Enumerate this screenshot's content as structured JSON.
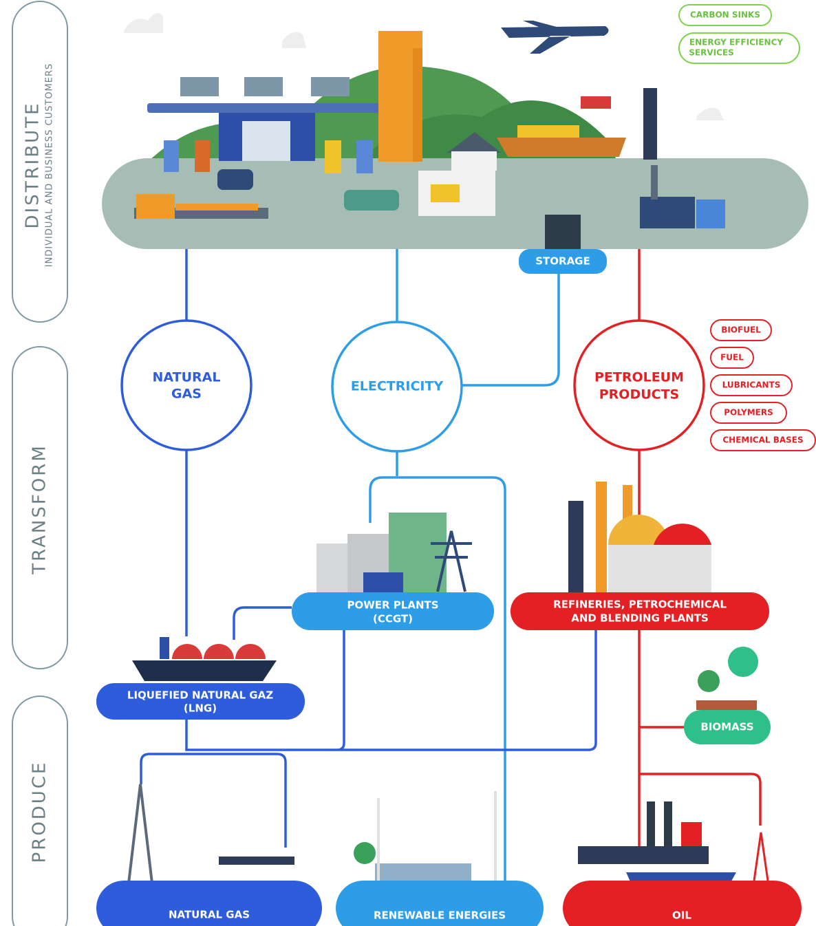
{
  "stages": {
    "distribute": {
      "title": "DISTRIBUTE",
      "subtitle": "INDIVIDUAL AND BUSINESS CUSTOMERS"
    },
    "transform": {
      "title": "TRANSFORM"
    },
    "produce": {
      "title": "PRODUCE"
    }
  },
  "services": [
    [
      "CARBON SINKS"
    ],
    [
      "ENERGY EFFICIENCY",
      "SERVICES"
    ]
  ],
  "storage": "STORAGE",
  "energies": {
    "natural_gas": [
      "NATURAL",
      "GAS"
    ],
    "electricity": [
      "ELECTRICITY"
    ],
    "petroleum": [
      "PETROLEUM",
      "PRODUCTS"
    ]
  },
  "petroleum_products": [
    "BIOFUEL",
    "FUEL",
    "LUBRICANTS",
    "POLYMERS",
    "CHEMICAL BASES"
  ],
  "transform_nodes": {
    "power_plants": [
      "POWER PLANTS",
      "(CCGT)"
    ],
    "refineries": [
      "REFINERIES, PETROCHEMICAL",
      "AND BLENDING PLANTS"
    ],
    "lng": [
      "LIQUEFIED NATURAL GAZ",
      "(LNG)"
    ],
    "biomass": [
      "BIOMASS"
    ]
  },
  "produce": {
    "natural_gas": "NATURAL GAS",
    "renewables": "RENEWABLE ENERGIES",
    "oil": "OIL"
  }
}
